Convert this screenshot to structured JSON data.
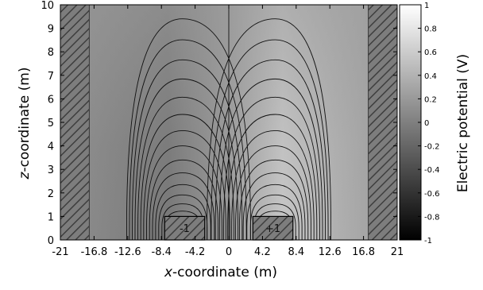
{
  "chart_data": {
    "type": "heatmap",
    "x_ticks": [
      "-21",
      "-16.8",
      "-12.6",
      "-8.4",
      "-4.2",
      "0",
      "4.2",
      "8.4",
      "12.6",
      "16.8",
      "21"
    ],
    "y_ticks": [
      "0",
      "1",
      "2",
      "3",
      "4",
      "5",
      "6",
      "7",
      "8",
      "9",
      "10"
    ],
    "x_label_italic": "x",
    "x_label_rest": "-coordinate (m)",
    "y_label_italic": "z",
    "y_label_rest": "-coordinate (m)",
    "xlim": [
      -21,
      21
    ],
    "ylim": [
      0,
      10
    ],
    "colorbar": {
      "label": "Electric potential (V)",
      "ticks": [
        "1",
        "0.8",
        "0.6",
        "0.4",
        "0.2",
        "0",
        "-0.2",
        "-0.4",
        "-0.6",
        "-0.8",
        "-1"
      ],
      "range": [
        -1,
        1
      ]
    },
    "walls": [
      {
        "x": [
          -21,
          -17.4
        ],
        "z": [
          0,
          10
        ]
      },
      {
        "x": [
          17.4,
          21
        ],
        "z": [
          0,
          10
        ]
      }
    ],
    "electrodes": [
      {
        "label": "-1",
        "potential": -1,
        "x": [
          -8.0,
          -3.0
        ],
        "z": [
          0,
          1
        ]
      },
      {
        "label": "+1",
        "potential": 1,
        "x": [
          3.0,
          8.0
        ],
        "z": [
          0,
          1
        ]
      }
    ],
    "background_potential": 0.3,
    "grid": false
  }
}
